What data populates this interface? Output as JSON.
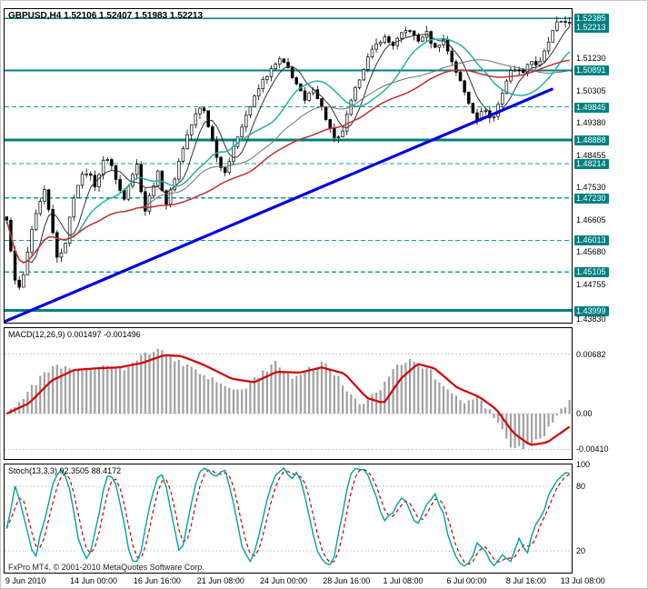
{
  "header": {
    "title": "GBPUSD,H4 1.52106 1.52407 1.51983 1.52213"
  },
  "footer": {
    "copyright": "FxPro MT4, © 2001-2010 MetaQuotes Software Corp."
  },
  "colors": {
    "teal": "#008080",
    "dashed_teal": "#0f9f9f",
    "badge_bg": "#008080",
    "badge_text": "#ffffff",
    "candle_up": "#ffffff",
    "candle_down": "#000000",
    "candle_outline": "#000000",
    "trendline": "#0000e0",
    "ma_fast": "#2f2f2f",
    "ma_mid": "#20b2aa",
    "ma_slow": "#707070",
    "ma_red": "#c03030",
    "macd_hist": "#a0a0a0",
    "macd_line": "#d40000",
    "stoch_k": "#00a2a2",
    "stoch_d": "#cc0000",
    "grid_gray": "#c8c8c8"
  },
  "x_axis": {
    "labels": [
      "9 Jun 2010",
      "14 Jun 00:00",
      "16 Jun 16:00",
      "21 Jun 08:00",
      "24 Jun 00:00",
      "28 Jun 16:00",
      "1 Jul 08:00",
      "6 Jul 00:00",
      "8 Jul 16:00",
      "13 Jul 08:00"
    ],
    "positions": [
      0.003,
      0.117,
      0.229,
      0.341,
      0.452,
      0.563,
      0.669,
      0.781,
      0.886,
      0.982
    ]
  },
  "chart_data": [
    {
      "type": "candlestick",
      "symbol": "GBPUSD",
      "timeframe": "H4",
      "quote": {
        "open": "1.52106",
        "high": "1.52407",
        "low": "1.51983",
        "close": "1.52213"
      },
      "y_range": [
        1.4365,
        1.5265
      ],
      "bars": 135,
      "close_path": [
        [
          0.0,
          1.4655
        ],
        [
          0.008,
          1.457
        ],
        [
          0.018,
          1.4445
        ],
        [
          0.03,
          1.45
        ],
        [
          0.042,
          1.461
        ],
        [
          0.055,
          1.469
        ],
        [
          0.068,
          1.4745
        ],
        [
          0.08,
          1.464
        ],
        [
          0.092,
          1.4535
        ],
        [
          0.105,
          1.46
        ],
        [
          0.118,
          1.472
        ],
        [
          0.13,
          1.478
        ],
        [
          0.145,
          1.48
        ],
        [
          0.158,
          1.4755
        ],
        [
          0.17,
          1.4825
        ],
        [
          0.182,
          1.484
        ],
        [
          0.195,
          1.477
        ],
        [
          0.208,
          1.472
        ],
        [
          0.22,
          1.478
        ],
        [
          0.232,
          1.482
        ],
        [
          0.245,
          1.468
        ],
        [
          0.258,
          1.475
        ],
        [
          0.27,
          1.48
        ],
        [
          0.282,
          1.47
        ],
        [
          0.295,
          1.476
        ],
        [
          0.308,
          1.484
        ],
        [
          0.32,
          1.49
        ],
        [
          0.335,
          1.496
        ],
        [
          0.348,
          1.499
        ],
        [
          0.36,
          1.492
        ],
        [
          0.372,
          1.485
        ],
        [
          0.385,
          1.479
        ],
        [
          0.398,
          1.484
        ],
        [
          0.41,
          1.49
        ],
        [
          0.425,
          1.496
        ],
        [
          0.44,
          1.501
        ],
        [
          0.455,
          1.506
        ],
        [
          0.47,
          1.509
        ],
        [
          0.485,
          1.512
        ],
        [
          0.5,
          1.5095
        ],
        [
          0.515,
          1.505
        ],
        [
          0.53,
          1.5
        ],
        [
          0.545,
          1.504
        ],
        [
          0.558,
          1.499
        ],
        [
          0.572,
          1.493
        ],
        [
          0.585,
          1.488
        ],
        [
          0.598,
          1.492
        ],
        [
          0.61,
          1.499
        ],
        [
          0.625,
          1.506
        ],
        [
          0.64,
          1.512
        ],
        [
          0.655,
          1.516
        ],
        [
          0.67,
          1.5185
        ],
        [
          0.685,
          1.516
        ],
        [
          0.7,
          1.519
        ],
        [
          0.715,
          1.521
        ],
        [
          0.73,
          1.517
        ],
        [
          0.745,
          1.52
        ],
        [
          0.76,
          1.515
        ],
        [
          0.775,
          1.518
        ],
        [
          0.79,
          1.512
        ],
        [
          0.805,
          1.506
        ],
        [
          0.82,
          1.5
        ],
        [
          0.835,
          1.495
        ],
        [
          0.85,
          1.498
        ],
        [
          0.862,
          1.494
        ],
        [
          0.875,
          1.5
        ],
        [
          0.888,
          1.506
        ],
        [
          0.9,
          1.51
        ],
        [
          0.915,
          1.508
        ],
        [
          0.93,
          1.512
        ],
        [
          0.945,
          1.51
        ],
        [
          0.96,
          1.516
        ],
        [
          0.975,
          1.522
        ],
        [
          0.99,
          1.5235
        ],
        [
          1.0,
          1.5221
        ]
      ],
      "axis_labels": [
        {
          "text": "1.52385",
          "price": 1.52385,
          "badge": true
        },
        {
          "text": "1.52213",
          "price": 1.52213,
          "badge": true
        },
        {
          "text": "1.51230",
          "price": 1.5123,
          "badge": false
        },
        {
          "text": "1.50891",
          "price": 1.50891,
          "badge": true
        },
        {
          "text": "1.50305",
          "price": 1.50305,
          "badge": false
        },
        {
          "text": "1.49845",
          "price": 1.49845,
          "badge": true
        },
        {
          "text": "1.49380",
          "price": 1.4938,
          "badge": false
        },
        {
          "text": "1.48888",
          "price": 1.48888,
          "badge": true
        },
        {
          "text": "1.48455",
          "price": 1.48455,
          "badge": false
        },
        {
          "text": "1.48214",
          "price": 1.48214,
          "badge": true
        },
        {
          "text": "1.47530",
          "price": 1.4753,
          "badge": false
        },
        {
          "text": "1.47230",
          "price": 1.4723,
          "badge": true
        },
        {
          "text": "1.46605",
          "price": 1.46605,
          "badge": false
        },
        {
          "text": "1.46013",
          "price": 1.46013,
          "badge": true
        },
        {
          "text": "1.45680",
          "price": 1.4568,
          "badge": false
        },
        {
          "text": "1.45105",
          "price": 1.45105,
          "badge": true
        },
        {
          "text": "1.44755",
          "price": 1.44755,
          "badge": false
        },
        {
          "text": "1.43999",
          "price": 1.43999,
          "badge": true
        },
        {
          "text": "1.43830",
          "price": 1.4383,
          "badge": false
        }
      ],
      "levels_solid": [
        {
          "price": 1.52385,
          "width": 1.5
        },
        {
          "price": 1.50891,
          "width": 2.2
        },
        {
          "price": 1.48888,
          "width": 3
        },
        {
          "price": 1.43999,
          "width": 3
        }
      ],
      "levels_dashed": [
        1.49845,
        1.48214,
        1.4723,
        1.46013,
        1.45105
      ],
      "trendline": {
        "x1": 0.0,
        "p1": 1.4368,
        "x2": 0.965,
        "p2": 1.5035
      },
      "moving_averages": [
        {
          "period": 6,
          "color_key": "ma_fast",
          "width": 1
        },
        {
          "period": 16,
          "color_key": "ma_mid",
          "width": 1.5
        },
        {
          "period": 32,
          "color_key": "ma_slow",
          "width": 1
        },
        {
          "period": 48,
          "color_key": "ma_red",
          "width": 1.5
        }
      ]
    },
    {
      "type": "macd",
      "title": "MACD(12,26,9) 0.001497 -0.001496",
      "values": [
        "0.001497",
        "-0.001496"
      ],
      "y_range": [
        -0.0052,
        0.0098
      ],
      "axis_labels": [
        {
          "text": "0.00682",
          "value": 0.00682
        },
        {
          "text": "0.00",
          "value": 0
        },
        {
          "text": "-0.00410",
          "value": -0.0041
        }
      ],
      "hist": [
        [
          0.0,
          0.0002
        ],
        [
          0.03,
          0.0018
        ],
        [
          0.06,
          0.0042
        ],
        [
          0.09,
          0.0055
        ],
        [
          0.12,
          0.0048
        ],
        [
          0.15,
          0.0052
        ],
        [
          0.18,
          0.0058
        ],
        [
          0.21,
          0.005
        ],
        [
          0.24,
          0.0066
        ],
        [
          0.27,
          0.0074
        ],
        [
          0.3,
          0.0062
        ],
        [
          0.33,
          0.005
        ],
        [
          0.36,
          0.004
        ],
        [
          0.39,
          0.0032
        ],
        [
          0.42,
          0.0026
        ],
        [
          0.45,
          0.0046
        ],
        [
          0.48,
          0.0058
        ],
        [
          0.51,
          0.0042
        ],
        [
          0.54,
          0.0052
        ],
        [
          0.57,
          0.0058
        ],
        [
          0.6,
          0.003
        ],
        [
          0.63,
          0.0006
        ],
        [
          0.66,
          0.0026
        ],
        [
          0.69,
          0.0055
        ],
        [
          0.72,
          0.0064
        ],
        [
          0.75,
          0.005
        ],
        [
          0.78,
          0.0028
        ],
        [
          0.81,
          0.0014
        ],
        [
          0.84,
          0.002
        ],
        [
          0.87,
          -0.001
        ],
        [
          0.9,
          -0.004
        ],
        [
          0.93,
          -0.0036
        ],
        [
          0.96,
          -0.002
        ],
        [
          0.98,
          0.0
        ],
        [
          1.0,
          0.0015
        ]
      ],
      "signal": [
        [
          0.0,
          0.0
        ],
        [
          0.04,
          0.0012
        ],
        [
          0.08,
          0.0038
        ],
        [
          0.12,
          0.005
        ],
        [
          0.16,
          0.0052
        ],
        [
          0.2,
          0.0053
        ],
        [
          0.24,
          0.0058
        ],
        [
          0.28,
          0.0067
        ],
        [
          0.31,
          0.0066
        ],
        [
          0.35,
          0.0056
        ],
        [
          0.4,
          0.004
        ],
        [
          0.44,
          0.0036
        ],
        [
          0.48,
          0.0048
        ],
        [
          0.52,
          0.0047
        ],
        [
          0.56,
          0.0053
        ],
        [
          0.6,
          0.0046
        ],
        [
          0.64,
          0.0018
        ],
        [
          0.67,
          0.0012
        ],
        [
          0.7,
          0.004
        ],
        [
          0.73,
          0.0057
        ],
        [
          0.76,
          0.0052
        ],
        [
          0.8,
          0.003
        ],
        [
          0.84,
          0.0019
        ],
        [
          0.87,
          0.0005
        ],
        [
          0.9,
          -0.0022
        ],
        [
          0.93,
          -0.0036
        ],
        [
          0.96,
          -0.0033
        ],
        [
          1.0,
          -0.0015
        ]
      ]
    },
    {
      "type": "stochastic",
      "title": "Stoch(13,3,3) 92.3505 88.4172",
      "values": [
        "92.3505",
        "88.4172"
      ],
      "y_range": [
        0,
        100
      ],
      "axis_labels": [
        {
          "text": "100",
          "value": 100
        },
        {
          "text": "80",
          "value": 80
        },
        {
          "text": "20",
          "value": 20
        }
      ],
      "levels_dashed": [
        80,
        20
      ],
      "k_path": [
        [
          0.0,
          40
        ],
        [
          0.015,
          80
        ],
        [
          0.03,
          55
        ],
        [
          0.05,
          12
        ],
        [
          0.07,
          55
        ],
        [
          0.085,
          90
        ],
        [
          0.1,
          96
        ],
        [
          0.115,
          70
        ],
        [
          0.13,
          25
        ],
        [
          0.145,
          12
        ],
        [
          0.16,
          45
        ],
        [
          0.175,
          85
        ],
        [
          0.19,
          92
        ],
        [
          0.205,
          55
        ],
        [
          0.22,
          12
        ],
        [
          0.235,
          8
        ],
        [
          0.25,
          50
        ],
        [
          0.265,
          88
        ],
        [
          0.28,
          92
        ],
        [
          0.295,
          45
        ],
        [
          0.31,
          14
        ],
        [
          0.325,
          55
        ],
        [
          0.34,
          90
        ],
        [
          0.355,
          96
        ],
        [
          0.37,
          85
        ],
        [
          0.385,
          97
        ],
        [
          0.4,
          75
        ],
        [
          0.415,
          30
        ],
        [
          0.43,
          8
        ],
        [
          0.445,
          25
        ],
        [
          0.46,
          60
        ],
        [
          0.475,
          90
        ],
        [
          0.49,
          96
        ],
        [
          0.505,
          88
        ],
        [
          0.52,
          92
        ],
        [
          0.535,
          60
        ],
        [
          0.55,
          20
        ],
        [
          0.565,
          6
        ],
        [
          0.58,
          10
        ],
        [
          0.595,
          50
        ],
        [
          0.61,
          90
        ],
        [
          0.625,
          97
        ],
        [
          0.64,
          92
        ],
        [
          0.655,
          75
        ],
        [
          0.67,
          45
        ],
        [
          0.685,
          55
        ],
        [
          0.7,
          72
        ],
        [
          0.715,
          60
        ],
        [
          0.73,
          42
        ],
        [
          0.745,
          60
        ],
        [
          0.76,
          75
        ],
        [
          0.775,
          55
        ],
        [
          0.79,
          25
        ],
        [
          0.805,
          10
        ],
        [
          0.82,
          6
        ],
        [
          0.835,
          28
        ],
        [
          0.85,
          18
        ],
        [
          0.865,
          8
        ],
        [
          0.88,
          15
        ],
        [
          0.895,
          10
        ],
        [
          0.91,
          30
        ],
        [
          0.925,
          20
        ],
        [
          0.94,
          45
        ],
        [
          0.955,
          60
        ],
        [
          0.97,
          78
        ],
        [
          0.985,
          88
        ],
        [
          1.0,
          92.35
        ]
      ]
    }
  ]
}
